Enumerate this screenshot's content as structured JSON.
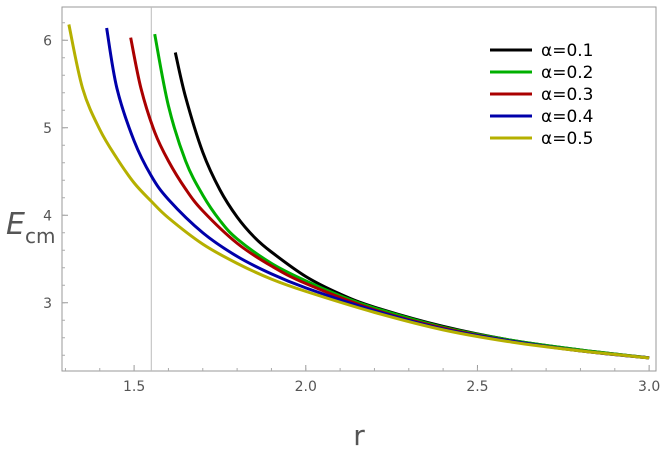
{
  "chart_data": {
    "type": "line",
    "title": "",
    "xlabel": "r",
    "ylabel": "E",
    "ylabel_subscript": "cm",
    "xlim": [
      1.29,
      3.02
    ],
    "ylim": [
      2.22,
      6.38
    ],
    "xticks": [
      1.5,
      2.0,
      2.5,
      3.0
    ],
    "xtick_labels": [
      "1.5",
      "2.0",
      "2.5",
      "3.0"
    ],
    "yticks": [
      3,
      4,
      5,
      6
    ],
    "ytick_labels": [
      "3",
      "4",
      "5",
      "6"
    ],
    "vertical_reference_line_x": 1.55,
    "grid": false,
    "legend_position": "top-right",
    "series": [
      {
        "name": "α=0.1",
        "color": "#000000",
        "x": [
          1.62,
          1.65,
          1.7,
          1.75,
          1.8,
          1.85,
          1.9,
          2.0,
          2.1,
          2.2,
          2.4,
          2.6,
          2.8,
          3.0
        ],
        "y": [
          5.86,
          5.35,
          4.72,
          4.29,
          3.98,
          3.75,
          3.58,
          3.3,
          3.1,
          2.95,
          2.73,
          2.57,
          2.46,
          2.37
        ]
      },
      {
        "name": "α=0.2",
        "color": "#00b000",
        "x": [
          1.56,
          1.6,
          1.65,
          1.7,
          1.75,
          1.8,
          1.9,
          2.0,
          2.1,
          2.2,
          2.4,
          2.6,
          2.8,
          3.0
        ],
        "y": [
          6.07,
          5.25,
          4.62,
          4.23,
          3.94,
          3.73,
          3.45,
          3.25,
          3.08,
          2.94,
          2.72,
          2.57,
          2.46,
          2.37
        ]
      },
      {
        "name": "α=0.3",
        "color": "#aa0000",
        "x": [
          1.49,
          1.52,
          1.56,
          1.6,
          1.65,
          1.7,
          1.8,
          1.9,
          2.0,
          2.2,
          2.4,
          2.6,
          2.8,
          3.0
        ],
        "y": [
          6.03,
          5.45,
          4.95,
          4.62,
          4.3,
          4.05,
          3.68,
          3.42,
          3.22,
          2.92,
          2.71,
          2.56,
          2.45,
          2.37
        ]
      },
      {
        "name": "α=0.4",
        "color": "#0000aa",
        "x": [
          1.42,
          1.45,
          1.5,
          1.55,
          1.6,
          1.7,
          1.8,
          1.9,
          2.0,
          2.2,
          2.4,
          2.6,
          2.8,
          3.0
        ],
        "y": [
          6.14,
          5.45,
          4.85,
          4.45,
          4.18,
          3.8,
          3.53,
          3.33,
          3.17,
          2.91,
          2.7,
          2.56,
          2.45,
          2.37
        ]
      },
      {
        "name": "α=0.5",
        "color": "#b5b000",
        "x": [
          1.31,
          1.35,
          1.4,
          1.45,
          1.5,
          1.55,
          1.6,
          1.7,
          1.8,
          1.9,
          2.0,
          2.2,
          2.4,
          2.6,
          2.8,
          3.0
        ],
        "y": [
          6.18,
          5.45,
          4.98,
          4.65,
          4.37,
          4.16,
          3.97,
          3.67,
          3.45,
          3.27,
          3.13,
          2.89,
          2.69,
          2.55,
          2.45,
          2.37
        ]
      }
    ]
  }
}
